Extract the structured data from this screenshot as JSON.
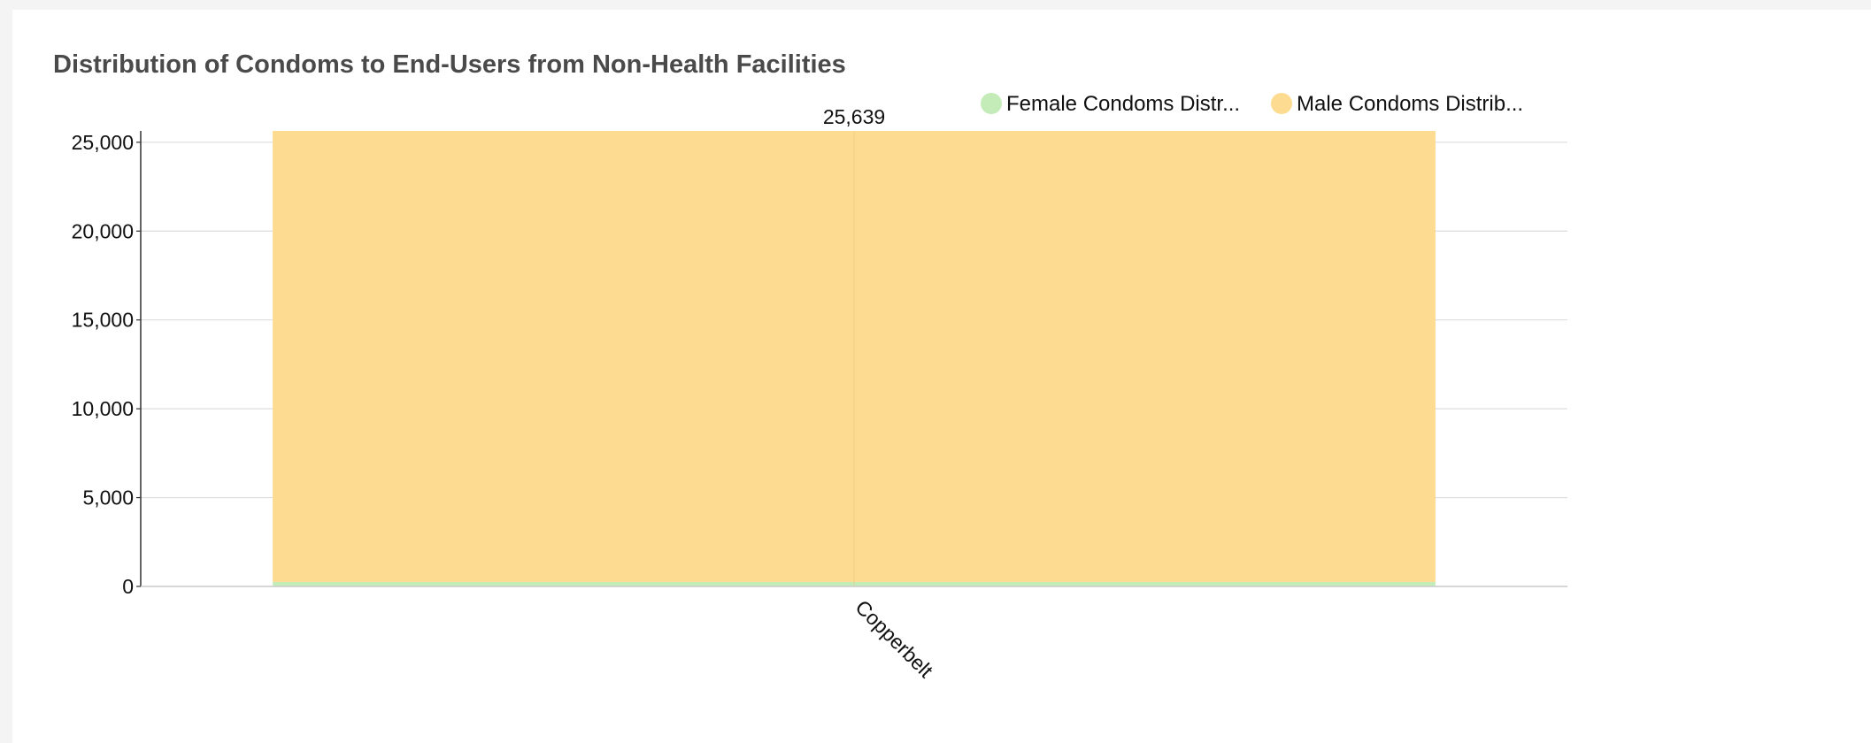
{
  "title": "Distribution of Condoms to End-Users from Non-Health Facilities",
  "chart_data": {
    "type": "bar",
    "stacked": true,
    "title": "Distribution of Condoms to End-Users from Non-Health Facilities",
    "xlabel": "",
    "ylabel": "",
    "categories": [
      "Copperbelt"
    ],
    "series": [
      {
        "name": "Female Condoms Distr...",
        "color": "#c3ecb8",
        "values": [
          250
        ]
      },
      {
        "name": "Male Condoms Distrib...",
        "color": "#fddc91",
        "values": [
          25389
        ]
      }
    ],
    "totals": [
      25639
    ],
    "total_labels": [
      "25,639"
    ],
    "ylim": [
      0,
      25639
    ],
    "yticks": [
      0,
      5000,
      10000,
      15000,
      20000,
      25000
    ],
    "ytick_labels": [
      "0",
      "5,000",
      "10,000",
      "15,000",
      "20,000",
      "25,000"
    ],
    "grid": true,
    "legend_position": "top-right"
  }
}
